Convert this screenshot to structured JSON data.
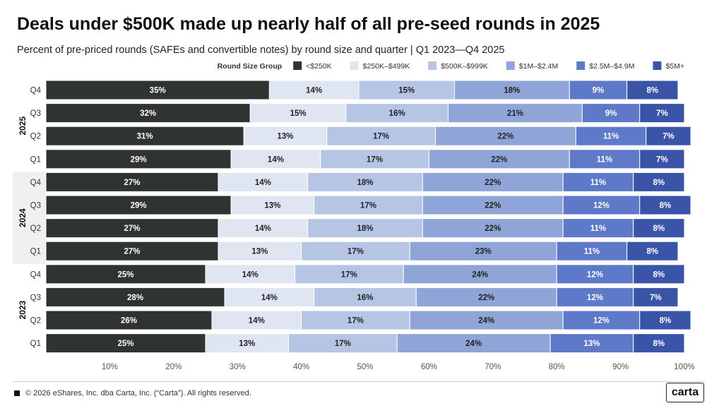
{
  "title": "Deals under $500K made up nearly half of all pre-seed rounds in 2025",
  "subtitle": "Percent of pre-priced rounds (SAFEs and convertible notes) by round size and quarter | Q1 2023—Q4 2025",
  "footer": "© 2026 eShares, Inc. dba Carta, Inc. (“Carta”). All rights reserved.",
  "logo": "carta",
  "colors": {
    "<$250K": "#2f3331",
    "$250K–$499K": "#dfe6f2",
    "$500K–$999K": "#b7c5e4",
    "$1M–$2.4M": "#8fa4d7",
    "$2.5M–$4.9M": "#5d79c7",
    "$5M+": "#3a55a8"
  },
  "chart_data": {
    "type": "bar",
    "orientation": "horizontal",
    "stacked": true,
    "legend_title": "Round Size Group",
    "legend_position": "top-right",
    "categories": [
      {
        "year": "2025",
        "quarter": "Q4"
      },
      {
        "year": "2025",
        "quarter": "Q3"
      },
      {
        "year": "2025",
        "quarter": "Q2"
      },
      {
        "year": "2025",
        "quarter": "Q1"
      },
      {
        "year": "2024",
        "quarter": "Q4"
      },
      {
        "year": "2024",
        "quarter": "Q3"
      },
      {
        "year": "2024",
        "quarter": "Q2"
      },
      {
        "year": "2024",
        "quarter": "Q1"
      },
      {
        "year": "2023",
        "quarter": "Q4"
      },
      {
        "year": "2023",
        "quarter": "Q3"
      },
      {
        "year": "2023",
        "quarter": "Q2"
      },
      {
        "year": "2023",
        "quarter": "Q1"
      }
    ],
    "year_groups": [
      "2025",
      "2024",
      "2023"
    ],
    "series": [
      {
        "name": "<$250K",
        "values": [
          35,
          32,
          31,
          29,
          27,
          29,
          27,
          27,
          25,
          28,
          26,
          25
        ]
      },
      {
        "name": "$250K–$499K",
        "values": [
          14,
          15,
          13,
          14,
          14,
          13,
          14,
          13,
          14,
          14,
          14,
          13
        ]
      },
      {
        "name": "$500K–$999K",
        "values": [
          15,
          16,
          17,
          17,
          18,
          17,
          18,
          17,
          17,
          16,
          17,
          17
        ]
      },
      {
        "name": "$1M–$2.4M",
        "values": [
          18,
          21,
          22,
          22,
          22,
          22,
          22,
          23,
          24,
          22,
          24,
          24
        ]
      },
      {
        "name": "$2.5M–$4.9M",
        "values": [
          9,
          9,
          11,
          11,
          11,
          12,
          11,
          11,
          12,
          12,
          12,
          13
        ]
      },
      {
        "name": "$5M+",
        "values": [
          8,
          7,
          7,
          7,
          8,
          8,
          8,
          8,
          8,
          7,
          8,
          8
        ]
      }
    ],
    "xlim": [
      0,
      100
    ],
    "xticks": [
      "10%",
      "20%",
      "30%",
      "40%",
      "50%",
      "60%",
      "70%",
      "80%",
      "90%",
      "100%"
    ],
    "grid": false
  }
}
